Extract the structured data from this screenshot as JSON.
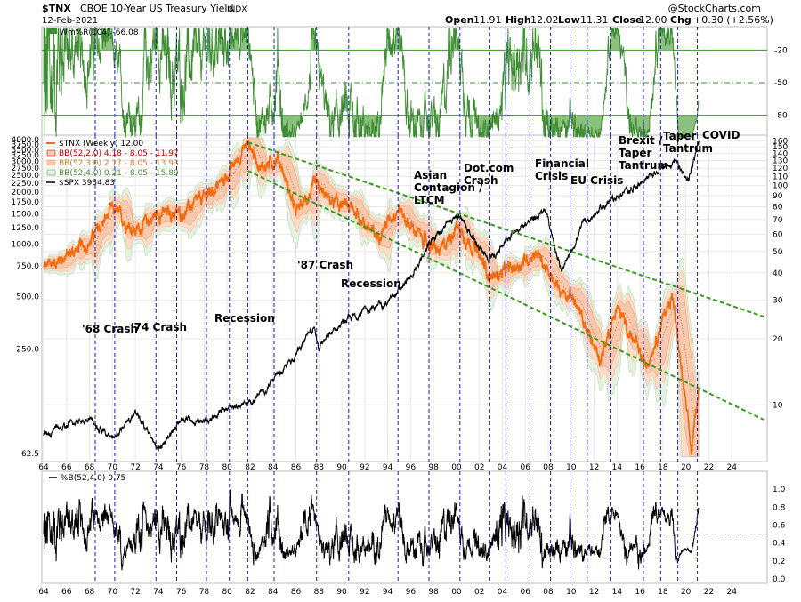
{
  "header": {
    "symbol": "$TNX",
    "name": "CBOE 10-Year US Treasury Yield",
    "exchange": "INDX",
    "date": "12-Feb-2021",
    "watermark": "@StockCharts.com",
    "open_label": "Open",
    "open": "11.91",
    "high_label": "High",
    "high": "12.02",
    "low_label": "Low",
    "low": "11.31",
    "close_label": "Close",
    "close": "12.00",
    "chg_label": "Chg",
    "chg": "+0.30 (+2.56%)"
  },
  "colors": {
    "tnx": "#f26b0f",
    "spx": "#000000",
    "willr": "#3d8c33",
    "willr_fill": "#8bc07e",
    "bb_fill": "#f6c9ad",
    "bb_outer": "#b9dcb3",
    "trend": "#3a9a1a",
    "vline": "#1a1acc",
    "bb1": "#cc0000",
    "bb2": "#f5a05c",
    "bb3": "#4a8f3a"
  },
  "panels": {
    "willr": {
      "legend": "Wm%R(104) -66.08",
      "ticks": [
        "-20",
        "-50",
        "-80"
      ]
    },
    "main": {
      "legend": [
        {
          "label": "$TNX (Weekly) 12.00",
          "color": "#f26b0f"
        },
        {
          "label": "BB(52,2.0) 4.18 - 8.05 - 11.97",
          "color": "#cc0000"
        },
        {
          "label": "BB(52,3.0) 2.17 - 8.05 - 13.93",
          "color": "#f5a05c"
        },
        {
          "label": "BB(52,4.0) 0.21 - 8.05 - 15.89",
          "color": "#4a8f3a"
        },
        {
          "label": "$SPX 3934.83",
          "color": "#000000"
        }
      ],
      "left_ticks": [
        "4000.0",
        "3750.0",
        "3500.0",
        "3250.0",
        "3000.0",
        "2750.0",
        "2500.0",
        "2250.0",
        "2000.0",
        "1750.0",
        "1500.0",
        "1250.0",
        "1000.0",
        "750.0",
        "500.0",
        "250.0",
        "62.5"
      ],
      "right_ticks": [
        "160",
        "150",
        "140",
        "130",
        "120",
        "110",
        "100",
        "90",
        "80",
        "70",
        "60",
        "50",
        "40",
        "30",
        "20",
        "10"
      ]
    },
    "pctb": {
      "legend": "%B(52,4.0) 0.75",
      "ticks": [
        "1.0",
        "0.8",
        "0.6",
        "0.4",
        "0.2",
        "0.0"
      ]
    }
  },
  "x_ticks": [
    "64",
    "66",
    "68",
    "70",
    "72",
    "74",
    "76",
    "78",
    "80",
    "82",
    "84",
    "86",
    "88",
    "90",
    "92",
    "94",
    "96",
    "98",
    "00",
    "02",
    "04",
    "06",
    "08",
    "10",
    "12",
    "14",
    "16",
    "18",
    "20",
    "22",
    "24"
  ],
  "annotations": [
    {
      "lines": [
        "'68 Crash"
      ]
    },
    {
      "lines": [
        "'74 Crash"
      ]
    },
    {
      "lines": [
        "Recession"
      ]
    },
    {
      "lines": [
        "'87 Crash"
      ]
    },
    {
      "lines": [
        "Recession"
      ]
    },
    {
      "lines": [
        "Asian",
        "Contagion /",
        "LTCM"
      ]
    },
    {
      "lines": [
        "Dot.com",
        "Crash"
      ]
    },
    {
      "lines": [
        "Financial",
        "Crisis"
      ]
    },
    {
      "lines": [
        "EU Crisis"
      ]
    },
    {
      "lines": [
        "Brexit /",
        "Taper",
        "Tantrum"
      ]
    },
    {
      "lines": [
        "Taper",
        "Tantrum"
      ]
    },
    {
      "lines": [
        "COVID"
      ]
    }
  ],
  "chart_data": [
    {
      "type": "line",
      "title": "Wm%R(104)",
      "ylim": [
        -100,
        0
      ],
      "last_value": -66.08
    },
    {
      "type": "line",
      "title": "$TNX CBOE 10-Year US Treasury Yield (Weekly) with $SPX",
      "x_range": [
        1964,
        2026
      ],
      "event_years": [
        1968.5,
        1970.2,
        1973.8,
        1975.6,
        1978.2,
        1980.2,
        1981.8,
        1984.1,
        1987.8,
        1990.6,
        1994.9,
        1997.6,
        2000.3,
        2002.9,
        2004.3,
        2006.4,
        2008.2,
        2009.9,
        2011.4,
        2013.4,
        2016.3,
        2017.8,
        2019.3,
        2021.0
      ],
      "series": [
        {
          "name": "$TNX (Weekly)",
          "axis": "right",
          "x": [
            1964,
            1966,
            1968,
            1970,
            1972,
            1974,
            1976,
            1978,
            1980,
            1981.8,
            1983,
            1984.5,
            1986,
            1987.7,
            1989,
            1991,
            1993,
            1994.9,
            1996,
            1998.5,
            2000,
            2001.5,
            2003,
            2005,
            2007,
            2008.5,
            2010,
            2012.5,
            2014,
            2016.5,
            2018.8,
            2020.5,
            2021.1
          ],
          "values": [
            42,
            48,
            55,
            78,
            62,
            75,
            74,
            88,
            110,
            158,
            120,
            134,
            75,
            99,
            85,
            78,
            58,
            80,
            65,
            49,
            66,
            52,
            38,
            42,
            50,
            35,
            32,
            16,
            28,
            15,
            32,
            6,
            12
          ]
        },
        {
          "name": "$SPX",
          "axis": "left",
          "x": [
            1964,
            1966,
            1968,
            1970,
            1972,
            1974,
            1976,
            1978,
            1980,
            1982,
            1985,
            1987.6,
            1988,
            1990,
            1992,
            1994,
            1996,
            1998,
            2000.2,
            2002.8,
            2005,
            2007.8,
            2009.2,
            2011,
            2013,
            2015,
            2017,
            2019,
            2020.2,
            2021.1
          ],
          "values": [
            80,
            90,
            100,
            75,
            110,
            65,
            100,
            95,
            115,
            120,
            190,
            330,
            260,
            350,
            415,
            460,
            640,
            1100,
            1480,
            800,
            1200,
            1550,
            680,
            1300,
            1700,
            2050,
            2500,
            3000,
            2300,
            3935
          ]
        }
      ]
    },
    {
      "type": "line",
      "title": "%B(52,4.0)",
      "ylim": [
        0,
        1.1
      ],
      "last_value": 0.75
    }
  ]
}
